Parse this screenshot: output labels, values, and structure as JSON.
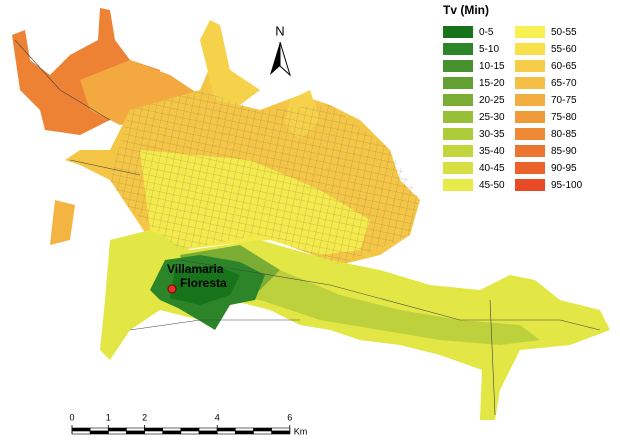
{
  "legend": {
    "title": "Tv (Min)",
    "items": [
      {
        "label": "0-5",
        "color": "#17741a"
      },
      {
        "label": "5-10",
        "color": "#2c8528"
      },
      {
        "label": "10-15",
        "color": "#47922f"
      },
      {
        "label": "15-20",
        "color": "#62a034"
      },
      {
        "label": "20-25",
        "color": "#7bad35"
      },
      {
        "label": "25-30",
        "color": "#97bf38"
      },
      {
        "label": "30-35",
        "color": "#aecb3a"
      },
      {
        "label": "35-40",
        "color": "#c4d63d"
      },
      {
        "label": "40-45",
        "color": "#d6e042"
      },
      {
        "label": "45-50",
        "color": "#e8ea4a"
      },
      {
        "label": "50-55",
        "color": "#f7f052"
      },
      {
        "label": "55-60",
        "color": "#f8e04b"
      },
      {
        "label": "60-65",
        "color": "#f6cd48"
      },
      {
        "label": "65-70",
        "color": "#f5bf45"
      },
      {
        "label": "70-75",
        "color": "#f3ad40"
      },
      {
        "label": "75-80",
        "color": "#f09b3a"
      },
      {
        "label": "80-85",
        "color": "#ee8935"
      },
      {
        "label": "85-90",
        "color": "#ec7530"
      },
      {
        "label": "90-95",
        "color": "#ea612c"
      },
      {
        "label": "95-100",
        "color": "#e84a28"
      }
    ]
  },
  "north_arrow": "N",
  "place_label": [
    "Villamaria",
    "Floresta"
  ],
  "scale_bar": {
    "ticks": [
      0,
      1,
      2,
      4,
      6
    ],
    "unit": "Km"
  }
}
